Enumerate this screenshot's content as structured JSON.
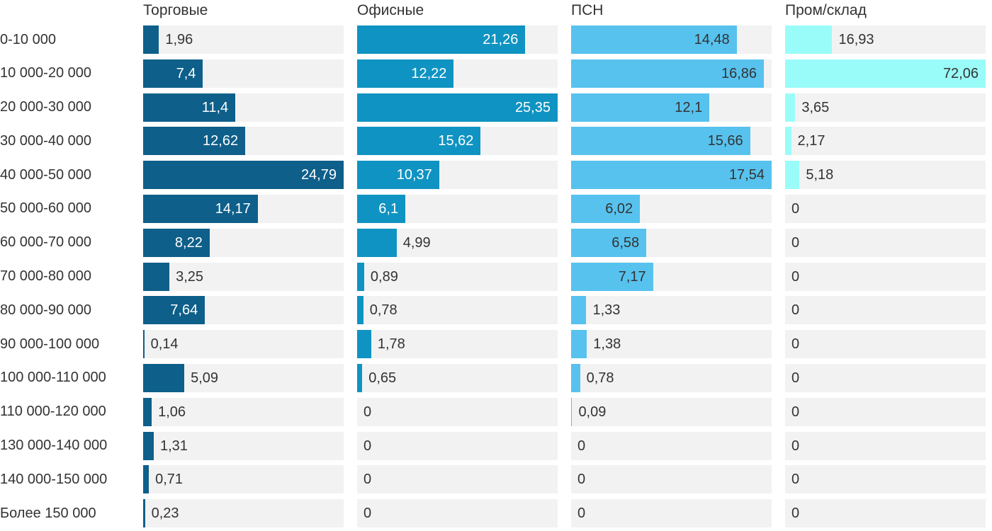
{
  "chart_data": {
    "type": "bar",
    "orientation": "horizontal",
    "layout": "small-multiples: one sub-column per series, each bar scaled to that series' maximum value = full track width",
    "title": "",
    "xlabel": "",
    "ylabel": "",
    "grid": false,
    "legend_position": "column headers above each sub-chart",
    "track_color": "#f2f2f2",
    "text_color": "#333333",
    "background_color": "#ffffff",
    "categories": [
      "0-10 000",
      "10 000-20 000",
      "20 000-30 000",
      "30 000-40 000",
      "40 000-50 000",
      "50 000-60 000",
      "60 000-70 000",
      "70 000-80 000",
      "80 000-90 000",
      "90 000-100 000",
      "100 000-110 000",
      "110 000-120 000",
      "130 000-140 000",
      "140 000-150 000",
      "Более 150 000"
    ],
    "series": [
      {
        "name": "Торговые",
        "color": "#0e5f8a",
        "inside_label_color": "#ffffff",
        "values": [
          1.96,
          7.4,
          11.4,
          12.62,
          24.79,
          14.17,
          8.22,
          3.25,
          7.64,
          0.14,
          5.09,
          1.06,
          1.31,
          0.71,
          0.23
        ],
        "labels": [
          "1,96",
          "7,4",
          "11,4",
          "12,62",
          "24,79",
          "14,17",
          "8,22",
          "3,25",
          "7,64",
          "0,14",
          "5,09",
          "1,06",
          "1,31",
          "0,71",
          "0,23"
        ]
      },
      {
        "name": "Офисные",
        "color": "#0f93c2",
        "inside_label_color": "#ffffff",
        "values": [
          21.26,
          12.22,
          25.35,
          15.62,
          10.37,
          6.1,
          4.99,
          0.89,
          0.78,
          1.78,
          0.65,
          0,
          0,
          0,
          0
        ],
        "labels": [
          "21,26",
          "12,22",
          "25,35",
          "15,62",
          "10,37",
          "6,1",
          "4,99",
          "0,89",
          "0,78",
          "1,78",
          "0,65",
          "0",
          "0",
          "0",
          "0"
        ]
      },
      {
        "name": "ПСН",
        "color": "#57c2ee",
        "inside_label_color": "#333333",
        "values": [
          14.48,
          16.86,
          12.1,
          15.66,
          17.54,
          6.02,
          6.58,
          7.17,
          1.33,
          1.38,
          0.78,
          0.09,
          0,
          0,
          0
        ],
        "labels": [
          "14,48",
          "16,86",
          "12,1",
          "15,66",
          "17,54",
          "6,02",
          "6,58",
          "7,17",
          "1,33",
          "1,38",
          "0,78",
          "0,09",
          "0",
          "0",
          "0"
        ]
      },
      {
        "name": "Пром/склад",
        "color": "#9afcf8",
        "inside_label_color": "#333333",
        "values": [
          16.93,
          72.06,
          3.65,
          2.17,
          5.18,
          0,
          0,
          0,
          0,
          0,
          0,
          0,
          0,
          0,
          0
        ],
        "labels": [
          "16,93",
          "72,06",
          "3,65",
          "2,17",
          "5,18",
          "0",
          "0",
          "0",
          "0",
          "0",
          "0",
          "0",
          "0",
          "0",
          "0"
        ]
      }
    ]
  }
}
